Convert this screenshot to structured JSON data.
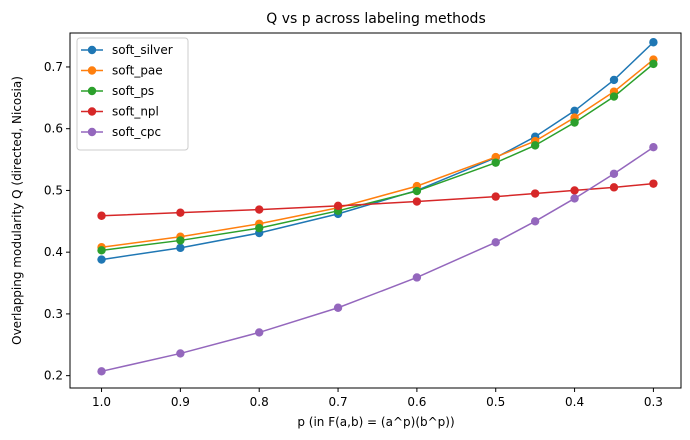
{
  "chart_data": {
    "type": "line",
    "title": "Q vs p across labeling methods",
    "xlabel": "p (in F(a,b) = (a^p)(b^p))",
    "ylabel": "Overlapping modularity Q (directed, Nicosia)",
    "x": [
      1.0,
      0.9,
      0.8,
      0.7,
      0.6,
      0.5,
      0.45,
      0.4,
      0.35,
      0.3
    ],
    "xlim": [
      1.04,
      0.265
    ],
    "x_reversed": true,
    "x_ticks": [
      1.0,
      0.9,
      0.8,
      0.7,
      0.6,
      0.5,
      0.4,
      0.3
    ],
    "x_tick_labels": [
      "1.0",
      "0.9",
      "0.8",
      "0.7",
      "0.6",
      "0.5",
      "0.4",
      "0.3"
    ],
    "ylim": [
      0.18,
      0.755
    ],
    "y_ticks": [
      0.2,
      0.3,
      0.4,
      0.5,
      0.6,
      0.7
    ],
    "y_tick_labels": [
      "0.2",
      "0.3",
      "0.4",
      "0.5",
      "0.6",
      "0.7"
    ],
    "grid": false,
    "legend_position": "top-left",
    "series": [
      {
        "name": "soft_silver",
        "color": "#1f77b4",
        "values": [
          0.388,
          0.407,
          0.431,
          0.462,
          0.5,
          0.553,
          0.587,
          0.629,
          0.679,
          0.74
        ]
      },
      {
        "name": "soft_pae",
        "color": "#ff7f0e",
        "values": [
          0.408,
          0.425,
          0.446,
          0.472,
          0.507,
          0.554,
          0.58,
          0.618,
          0.66,
          0.712
        ]
      },
      {
        "name": "soft_ps",
        "color": "#2ca02c",
        "values": [
          0.403,
          0.419,
          0.439,
          0.467,
          0.499,
          0.545,
          0.573,
          0.61,
          0.652,
          0.705
        ]
      },
      {
        "name": "soft_npl",
        "color": "#d62728",
        "values": [
          0.459,
          0.464,
          0.469,
          0.475,
          0.482,
          0.49,
          0.495,
          0.5,
          0.505,
          0.511
        ]
      },
      {
        "name": "soft_cpc",
        "color": "#9467bd",
        "values": [
          0.207,
          0.236,
          0.27,
          0.31,
          0.359,
          0.416,
          0.45,
          0.487,
          0.527,
          0.57
        ]
      }
    ]
  }
}
